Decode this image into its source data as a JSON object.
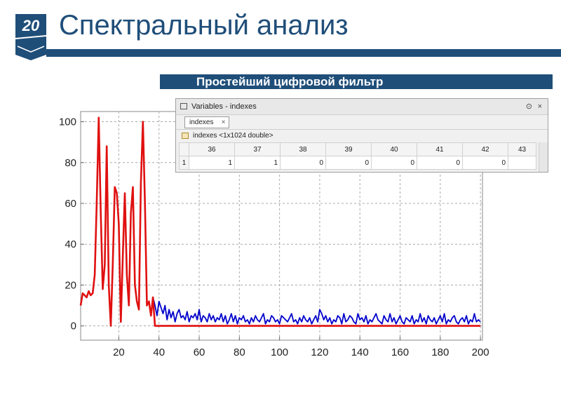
{
  "slide": {
    "number": "20",
    "title": "Спектральный анализ",
    "subtitle": "Простейший цифровой фильтр"
  },
  "variables_window": {
    "title": "Variables - indexes",
    "tab_label": "indexes",
    "tab_close": "×",
    "menu_glyph": "⊙",
    "close_glyph": "×",
    "variable_info": "indexes <1x1024 double>",
    "columns": [
      "36",
      "37",
      "38",
      "39",
      "40",
      "41",
      "42",
      "43"
    ],
    "rows": [
      {
        "label": "1",
        "values": [
          "1",
          "1",
          "0",
          "0",
          "0",
          "0",
          "0",
          ""
        ]
      }
    ]
  },
  "chart_data": {
    "type": "line",
    "title": "",
    "xlabel": "",
    "ylabel": "",
    "xlim": [
      1,
      201
    ],
    "ylim": [
      -7,
      105
    ],
    "xticks": [
      20,
      40,
      60,
      80,
      100,
      120,
      140,
      160,
      180,
      200
    ],
    "yticks": [
      0,
      20,
      40,
      60,
      80,
      100
    ],
    "grid": true,
    "colors": {
      "blue": "#0000cc",
      "red": "#e01010"
    },
    "series": [
      {
        "color": "blue",
        "x": [
          1,
          2,
          3,
          4,
          5,
          6,
          7,
          8,
          9,
          10,
          11,
          12,
          13,
          14,
          15,
          16,
          17,
          18,
          19,
          20,
          21,
          22,
          23,
          24,
          25,
          26,
          27,
          28,
          29,
          30,
          31,
          32,
          33,
          34,
          35,
          36,
          37,
          38,
          39,
          40,
          41,
          42,
          43,
          44,
          45,
          46,
          47,
          48,
          49,
          50,
          51,
          52,
          53,
          54,
          55,
          56,
          57,
          58,
          59,
          60,
          61,
          62,
          63,
          64,
          65,
          66,
          67,
          68,
          69,
          70,
          71,
          72,
          73,
          74,
          75,
          76,
          77,
          78,
          79,
          80,
          81,
          82,
          83,
          84,
          85,
          86,
          87,
          88,
          89,
          90,
          91,
          92,
          93,
          94,
          95,
          96,
          97,
          98,
          99,
          100,
          101,
          102,
          103,
          104,
          105,
          106,
          107,
          108,
          109,
          110,
          111,
          112,
          113,
          114,
          115,
          116,
          117,
          118,
          119,
          120,
          121,
          122,
          123,
          124,
          125,
          126,
          127,
          128,
          129,
          130,
          131,
          132,
          133,
          134,
          135,
          136,
          137,
          138,
          139,
          140,
          141,
          142,
          143,
          144,
          145,
          146,
          147,
          148,
          149,
          150,
          151,
          152,
          153,
          154,
          155,
          156,
          157,
          158,
          159,
          160,
          161,
          162,
          163,
          164,
          165,
          166,
          167,
          168,
          169,
          170,
          171,
          172,
          173,
          174,
          175,
          176,
          177,
          178,
          179,
          180,
          181,
          182,
          183,
          184,
          185,
          186,
          187,
          188,
          189,
          190,
          191,
          192,
          193,
          194,
          195,
          196,
          197,
          198,
          199,
          200
        ],
        "y": [
          10,
          16,
          15,
          14,
          17,
          15,
          16,
          25,
          60,
          102,
          55,
          18,
          30,
          88,
          20,
          0,
          30,
          68,
          65,
          50,
          2,
          35,
          65,
          25,
          10,
          55,
          68,
          20,
          12,
          8,
          70,
          100,
          60,
          10,
          12,
          5,
          14,
          10,
          5,
          12,
          9,
          6,
          10,
          3,
          8,
          4,
          7,
          2,
          6,
          8,
          4,
          5,
          3,
          7,
          2,
          5,
          4,
          6,
          3,
          8,
          2,
          5,
          4,
          2,
          6,
          3,
          5,
          2,
          4,
          3,
          6,
          2,
          5,
          1,
          3,
          6,
          2,
          5,
          1,
          4,
          3,
          5,
          2,
          3,
          1,
          4,
          2,
          5,
          3,
          2,
          4,
          6,
          1,
          3,
          2,
          5,
          4,
          2,
          3,
          1,
          5,
          4,
          3,
          2,
          4,
          6,
          2,
          3,
          1,
          4,
          2,
          5,
          3,
          2,
          4,
          1,
          3,
          5,
          2,
          8,
          6,
          3,
          5,
          2,
          4,
          1,
          3,
          2,
          5,
          4,
          1,
          6,
          2,
          3,
          5,
          4,
          2,
          1,
          6,
          3,
          4,
          2,
          5,
          1,
          3,
          2,
          4,
          6,
          3,
          2,
          1,
          5,
          3,
          2,
          6,
          2,
          4,
          1,
          3,
          5,
          2,
          1,
          4,
          3,
          2,
          5,
          1,
          3,
          2,
          6,
          2,
          4,
          1,
          5,
          3,
          2,
          4,
          1,
          3,
          5,
          2,
          6,
          1,
          3,
          2,
          4,
          5,
          2,
          1,
          3,
          4,
          2,
          5,
          1,
          3,
          2,
          6,
          2,
          3,
          2
        ]
      },
      {
        "color": "red",
        "x": [
          1,
          2,
          3,
          4,
          5,
          6,
          7,
          8,
          9,
          10,
          11,
          12,
          13,
          14,
          15,
          16,
          17,
          18,
          19,
          20,
          21,
          22,
          23,
          24,
          25,
          26,
          27,
          28,
          29,
          30,
          31,
          32,
          33,
          34,
          35,
          36,
          37,
          38,
          200
        ],
        "y": [
          10,
          16,
          15,
          14,
          17,
          15,
          16,
          25,
          60,
          102,
          55,
          18,
          30,
          88,
          20,
          0,
          30,
          68,
          65,
          50,
          2,
          35,
          65,
          25,
          10,
          55,
          68,
          20,
          12,
          8,
          70,
          100,
          60,
          10,
          12,
          5,
          14,
          0,
          0
        ]
      }
    ]
  }
}
